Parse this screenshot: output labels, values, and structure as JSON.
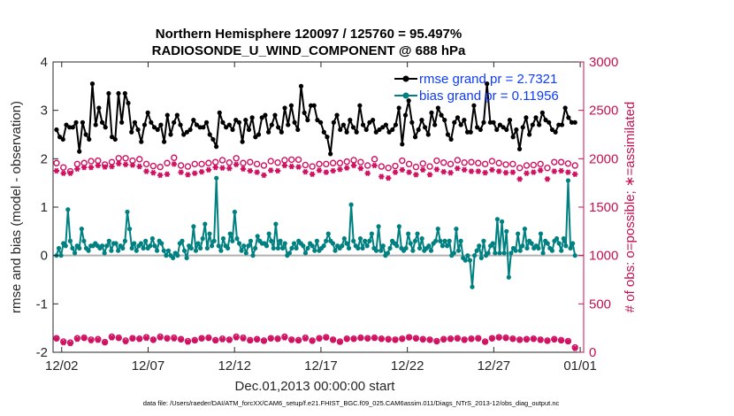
{
  "chart_data": {
    "type": "line",
    "title_line1": "Northern Hemisphere 120097 / 125760 = 95.497%",
    "title_line2": "RADIOSONDE_U_WIND_COMPONENT @ 688 hPa",
    "xlabel": "Dec.01,2013 00:00:00 start",
    "ylabel_left": "rmse and bias (model - observation)",
    "ylabel_right": "# of obs: o=possible; ∗=assimilated",
    "x_ticks": [
      "12/02",
      "12/07",
      "12/12",
      "12/17",
      "12/22",
      "12/27",
      "01/01"
    ],
    "x_tick_days": [
      1,
      6,
      11,
      16,
      21,
      26,
      31
    ],
    "xlim": [
      0.5,
      31.2
    ],
    "ylim_left": [
      -2,
      4
    ],
    "y_ticks_left": [
      "-2",
      "-1",
      "0",
      "1",
      "2",
      "3",
      "4"
    ],
    "ylim_right": [
      0,
      3000
    ],
    "y_ticks_right": [
      "0",
      "500",
      "1000",
      "1500",
      "2000",
      "2500",
      "3000"
    ],
    "legend": {
      "rmse_label": "rmse grand pr = 2.7321",
      "bias_label": "bias grand pr = 0.11956",
      "location": "top-right"
    },
    "colors": {
      "rmse": "#000000",
      "bias": "#008080",
      "obs": "#d01060",
      "zero_line": "#b0b0b0",
      "right_axis": "#c8104f",
      "legend_text": "#0d3bff"
    },
    "series": [
      {
        "name": "rmse",
        "values": [
          2.6,
          2.45,
          2.4,
          2.7,
          2.65,
          2.65,
          2.75,
          2.15,
          2.75,
          2.5,
          2.4,
          3.55,
          2.7,
          3.05,
          2.75,
          2.65,
          3.35,
          2.45,
          2.4,
          3.35,
          2.75,
          3.35,
          3.15,
          2.55,
          2.75,
          2.6,
          2.35,
          2.7,
          2.95,
          2.75,
          2.65,
          2.6,
          2.7,
          2.35,
          2.9,
          2.5,
          2.75,
          2.9,
          2.7,
          2.5,
          2.55,
          2.6,
          2.8,
          2.7,
          2.65,
          2.65,
          2.75,
          2.5,
          2.4,
          2.25,
          2.95,
          2.75,
          2.65,
          2.7,
          2.6,
          2.8,
          2.75,
          2.35,
          2.8,
          2.6,
          2.85,
          2.45,
          2.5,
          2.85,
          2.9,
          2.55,
          2.7,
          2.9,
          2.65,
          2.55,
          3.05,
          2.7,
          3.1,
          2.75,
          2.6,
          3.5,
          2.95,
          2.8,
          3.1,
          3.1,
          2.8,
          2.75,
          2.55,
          2.45,
          2.1,
          2.75,
          2.9,
          2.6,
          2.7,
          2.55,
          2.8,
          2.65,
          2.55,
          3.1,
          2.7,
          2.6,
          2.75,
          2.8,
          2.55,
          2.6,
          2.65,
          2.7,
          2.55,
          2.6,
          2.7,
          3.05,
          2.3,
          2.9,
          3.2,
          2.75,
          2.45,
          2.6,
          2.8,
          2.65,
          2.5,
          2.95,
          2.7,
          3.05,
          2.9,
          2.8,
          2.5,
          2.4,
          2.75,
          2.85,
          2.7,
          2.8,
          2.55,
          2.55,
          3.1,
          2.65,
          2.6,
          2.75,
          3.55,
          2.75,
          2.75,
          2.6,
          2.7,
          2.65,
          2.6,
          2.8,
          2.45,
          2.6,
          2.2,
          2.65,
          2.85,
          2.5,
          2.7,
          2.85,
          2.7,
          2.95,
          2.8,
          2.75,
          2.6,
          2.55,
          2.7,
          2.7,
          3.05,
          2.85,
          2.75,
          2.75
        ]
      },
      {
        "name": "bias",
        "values": [
          0.0,
          0.15,
          0.0,
          0.25,
          0.2,
          0.95,
          0.3,
          0.15,
          0.05,
          0.2,
          0.15,
          0.55,
          0.3,
          0.15,
          0.1,
          0.2,
          0.2,
          0.25,
          0.2,
          0.15,
          0.2,
          0.05,
          0.2,
          0.3,
          0.1,
          0.25,
          0.25,
          0.1,
          0.2,
          0.15,
          0.3,
          0.9,
          0.55,
          0.15,
          0.25,
          0.1,
          0.2,
          0.25,
          0.15,
          0.3,
          0.15,
          0.2,
          0.35,
          0.2,
          0.1,
          0.3,
          0.25,
          0.1,
          0.0,
          0.1,
          0.0,
          -0.05,
          0.05,
          0.0,
          0.25,
          0.3,
          0.1,
          -0.05,
          0.2,
          0.15,
          0.6,
          0.1,
          0.25,
          0.15,
          0.35,
          0.65,
          0.15,
          0.45,
          0.2,
          0.3,
          1.6,
          0.2,
          0.1,
          0.35,
          0.2,
          0.15,
          0.45,
          0.3,
          0.9,
          0.35,
          0.25,
          0.1,
          0.2,
          0.05,
          0.2,
          0.3,
          0.0,
          0.15,
          0.4,
          0.3,
          0.25,
          0.25,
          0.2,
          0.45,
          0.3,
          0.15,
          0.65,
          0.15,
          0.3,
          0.15,
          0.25,
          0.0,
          0.05,
          0.15,
          0.25,
          0.15,
          0.3,
          0.25,
          0.2,
          0.05,
          0.15,
          0.25,
          0.2,
          0.1,
          0.3,
          0.1,
          0.15,
          0.2,
          0.3,
          0.45,
          0.3,
          0.25,
          0.1,
          0.2,
          0.15,
          0.2,
          0.35,
          0.25,
          0.15,
          1.05,
          0.3,
          0.2,
          0.15,
          0.35,
          0.15,
          0.3,
          0.2,
          0.3,
          0.45,
          0.15,
          0.1,
          0.6,
          0.1,
          0.2,
          0.0,
          0.05,
          0.15,
          0.3,
          0.25,
          0.2,
          0.6,
          0.15,
          0.1,
          0.15,
          0.45,
          0.25,
          0.1,
          0.3,
          0.45,
          0.15,
          0.35,
          0.1,
          0.15,
          0.2,
          0.1,
          0.25,
          0.3,
          0.55,
          0.3,
          0.2,
          0.3,
          0.2,
          0.3,
          0.0,
          0.05,
          0.55,
          0.1,
          0.3,
          -0.05,
          -0.1,
          0.0,
          -0.1,
          -0.65,
          0.0,
          0.1,
          0.2,
          -0.05,
          0.3,
          0.0,
          0.05,
          0.2,
          0.25,
          0.05,
          0.75,
          0.05,
          0.7,
          0.05,
          0.5,
          -0.45,
          0.05,
          0.15,
          0.1,
          0.45,
          0.1,
          0.2,
          0.55,
          0.15,
          0.3,
          0.25,
          0.15,
          0.2,
          0.15,
          0.45,
          0.05,
          0.3,
          0.25,
          0.15,
          0.1,
          0.3,
          0.35,
          0.25,
          0.1,
          0.35,
          0.2,
          1.55,
          0.15,
          0.25,
          0.0
        ]
      },
      {
        "name": "obs_possible",
        "values": [
          1955,
          1910,
          1870,
          1945,
          1955,
          1975,
          1980,
          1940,
          1965,
          2005,
          2005,
          1980,
          1995,
          1945,
          1925,
          1915,
          1955,
          2010,
          1930,
          1920,
          1945,
          1945,
          1955,
          1965,
          1985,
          1960,
          2005,
          1955,
          1965,
          1945,
          1930,
          1975,
          1960,
          1985,
          1990,
          1990,
          1935,
          1920,
          1945,
          1945,
          1955,
          1955,
          1970,
          1985,
          1965,
          1930,
          1995,
          1920,
          1905,
          1925,
          1980,
          1945,
          1915,
          1950,
          1920,
          1980,
          1960,
          1945,
          1985,
          1960,
          1965,
          1955,
          1945,
          1975,
          1955,
          1940,
          1945,
          1905,
          1930,
          1935,
          1945,
          1905,
          1965,
          1965,
          1950,
          1930
        ]
      },
      {
        "name": "obs_assimilated",
        "values": [
          1875,
          1850,
          1850,
          1895,
          1910,
          1910,
          1930,
          1915,
          1920,
          1950,
          1940,
          1935,
          1920,
          1870,
          1855,
          1830,
          1840,
          1945,
          1860,
          1835,
          1850,
          1865,
          1885,
          1910,
          1905,
          1900,
          1940,
          1895,
          1875,
          1860,
          1830,
          1880,
          1875,
          1930,
          1920,
          1915,
          1865,
          1840,
          1880,
          1860,
          1875,
          1890,
          1905,
          1930,
          1900,
          1850,
          1930,
          1815,
          1800,
          1860,
          1885,
          1860,
          1835,
          1885,
          1835,
          1890,
          1865,
          1855,
          1900,
          1885,
          1870,
          1870,
          1855,
          1885,
          1870,
          1855,
          1860,
          1790,
          1850,
          1860,
          1880,
          1790,
          1870,
          1875,
          1860,
          1840
        ]
      },
      {
        "name": "low_possible",
        "values": [
          145,
          110,
          100,
          145,
          150,
          130,
          135,
          105,
          160,
          150,
          120,
          145,
          140,
          155,
          130,
          160,
          145,
          150,
          135,
          115,
          125,
          145,
          150,
          125,
          140,
          130,
          160,
          150,
          125,
          135,
          120,
          145,
          140,
          160,
          130,
          125,
          150,
          120,
          145,
          155,
          130,
          110,
          140,
          140,
          150,
          145,
          150,
          140,
          135,
          130,
          140,
          155,
          145,
          135,
          130,
          115,
          135,
          140,
          145,
          130,
          140,
          145,
          110,
          145,
          155,
          150,
          140,
          130,
          135,
          140,
          130,
          120,
          135,
          125,
          115,
          50
        ]
      },
      {
        "name": "low_assimilated",
        "values": [
          140,
          100,
          90,
          135,
          145,
          120,
          125,
          100,
          150,
          145,
          110,
          140,
          135,
          145,
          125,
          150,
          140,
          140,
          130,
          105,
          120,
          140,
          145,
          120,
          130,
          125,
          150,
          140,
          120,
          130,
          115,
          140,
          135,
          150,
          125,
          120,
          140,
          115,
          140,
          150,
          125,
          105,
          135,
          135,
          145,
          140,
          145,
          135,
          130,
          125,
          135,
          150,
          140,
          130,
          125,
          110,
          130,
          135,
          140,
          125,
          135,
          140,
          105,
          140,
          150,
          145,
          135,
          125,
          130,
          135,
          125,
          115,
          130,
          120,
          110,
          40
        ]
      }
    ]
  },
  "footer": "data file: /Users/raeder/DAI/ATM_forcXX/CAM6_setup/f.e21.FHIST_BGC.f09_025.CAM6assim.011/Diags_NTrS_2013-12/obs_diag_output.nc"
}
